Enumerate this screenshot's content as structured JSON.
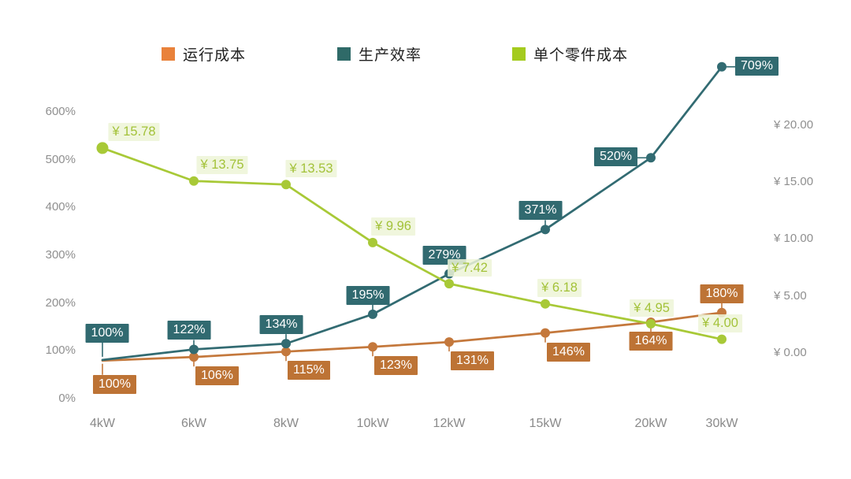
{
  "chart_data": {
    "type": "line",
    "title": "",
    "background": "#ffffff",
    "grid": false,
    "categories": [
      "4kW",
      "6kW",
      "8kW",
      "10kW",
      "12kW",
      "15kW",
      "20kW",
      "30kW"
    ],
    "series": [
      {
        "key": "operating-cost",
        "name": "运行成本",
        "yaxis": "left",
        "unit": "%",
        "color": "#C4783C",
        "legend_color": "#E9823B",
        "label_bg": "#BD7335",
        "label_text": "#FFFFFF",
        "values": [
          100,
          106,
          115,
          123,
          131,
          146,
          164,
          180
        ],
        "labels": [
          "100%",
          "106%",
          "115%",
          "123%",
          "131%",
          "146%",
          "164%",
          "180%"
        ]
      },
      {
        "key": "production-efficiency",
        "name": "生产效率",
        "yaxis": "left",
        "unit": "%",
        "color": "#326B72",
        "legend_color": "#2F6A68",
        "label_bg": "#316A70",
        "label_text": "#FFFFFF",
        "values": [
          100,
          122,
          134,
          195,
          279,
          371,
          520,
          709
        ],
        "labels": [
          "100%",
          "122%",
          "134%",
          "195%",
          "279%",
          "371%",
          "520%",
          "709%"
        ]
      },
      {
        "key": "cost-per-part",
        "name": "单个零件成本",
        "yaxis": "right",
        "unit": "¥",
        "color": "#A8C937",
        "legend_color": "#A4CB1E",
        "label_bg": "rgba(237,244,215,0.85)",
        "label_text": "#A3C239",
        "values": [
          15.78,
          13.75,
          13.53,
          9.96,
          7.42,
          6.18,
          4.95,
          4.0
        ],
        "labels": [
          "¥ 15.78",
          "¥ 13.75",
          "¥ 13.53",
          "¥ 9.96",
          "¥ 7.42",
          "¥ 6.18",
          "¥ 4.95",
          "¥ 4.00"
        ]
      }
    ],
    "left_axis": {
      "min": 0,
      "max": 600,
      "tick_values": [
        0,
        100,
        200,
        300,
        400,
        500,
        600
      ],
      "tick_labels": [
        "0%",
        "100%",
        "200%",
        "300%",
        "400%",
        "500%",
        "600%"
      ]
    },
    "right_axis": {
      "min": 0,
      "max": 20,
      "tick_values": [
        0,
        5,
        10,
        15,
        20
      ],
      "tick_labels": [
        "¥ 0.00",
        "¥ 5.00",
        "¥ 10.00",
        "¥ 15.00",
        "¥ 20.00"
      ]
    },
    "legend_position": "top"
  }
}
